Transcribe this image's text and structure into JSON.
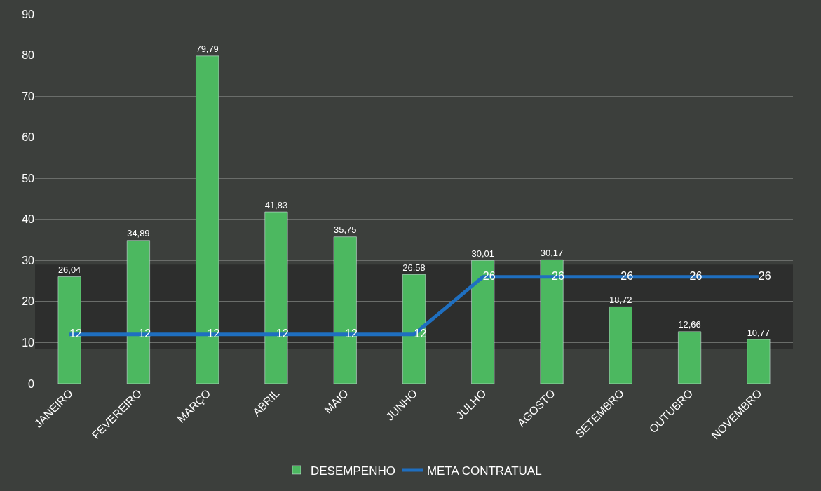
{
  "chart_data": {
    "type": "bar",
    "categories": [
      "JANEIRO",
      "FEVEREIRO",
      "MARÇO",
      "ABRIL",
      "MAIO",
      "JUNHO",
      "JULHO",
      "AGOSTO",
      "SETEMBRO",
      "OUTUBRO",
      "NOVEMBRO"
    ],
    "series": [
      {
        "name": "DESEMPENHO",
        "color": "#4cb860",
        "values": [
          26.04,
          34.89,
          79.79,
          41.83,
          35.75,
          26.58,
          30.01,
          30.17,
          18.72,
          12.66,
          10.77
        ],
        "value_labels": [
          "26,04",
          "34,89",
          "79,79",
          "41,83",
          "35,75",
          "26,58",
          "30,01",
          "30,17",
          "18,72",
          "12,66",
          "10,77"
        ]
      },
      {
        "name": "META CONTRATUAL",
        "type": "line",
        "color": "#1f6fc0",
        "values": [
          12,
          12,
          12,
          12,
          12,
          12,
          26,
          26,
          26,
          26,
          26
        ],
        "value_labels": [
          "12",
          "12",
          "12",
          "12",
          "12",
          "12",
          "26",
          "26",
          "26",
          "26",
          "26"
        ]
      }
    ],
    "ylim": [
      0,
      90
    ],
    "yticks": [
      0,
      10,
      20,
      30,
      40,
      50,
      60,
      70,
      80,
      90
    ],
    "grid": "y",
    "legend": "bottom",
    "bands": [
      {
        "axis": "y",
        "from": 8.5,
        "to": 29,
        "color": "#1a1a1a"
      }
    ]
  }
}
